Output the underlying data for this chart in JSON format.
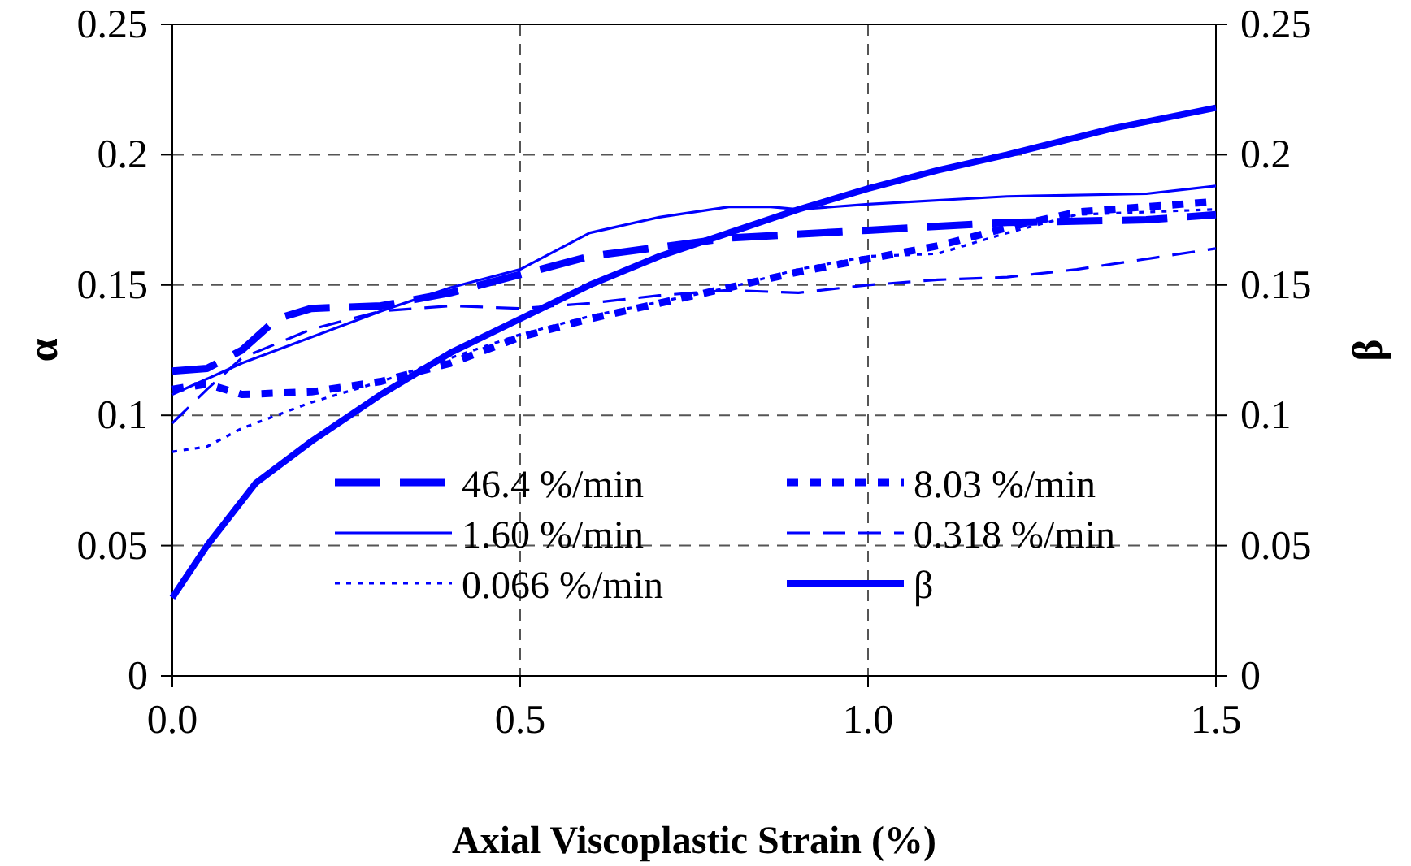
{
  "chart_data": {
    "type": "line",
    "xlabel": "Axial Viscoplastic Strain (%)",
    "ylabel": "α",
    "y2label": "β",
    "xlim": [
      0,
      1.5
    ],
    "xticks": [
      {
        "value": 0,
        "label": "0.0"
      },
      {
        "value": 0.5,
        "label": "0.5"
      },
      {
        "value": 1,
        "label": "1.0"
      },
      {
        "value": 1.5,
        "label": "1.5"
      }
    ],
    "ylim": [
      0,
      0.25
    ],
    "yticks": [
      0,
      0.05,
      0.1,
      0.15,
      0.2,
      0.25
    ],
    "y2lim": [
      0,
      0.25
    ],
    "y2ticks": [
      0,
      0.05,
      0.1,
      0.15,
      0.2,
      0.25
    ],
    "grid": true,
    "legend": "bottom",
    "marker": "none",
    "series": [
      {
        "name": "46.4 %/min",
        "color": "#0000ff",
        "line_style": "dashed",
        "x": [
          0,
          0.05,
          0.1,
          0.15,
          0.2,
          0.3,
          0.4,
          0.5,
          0.6,
          0.8,
          1.0,
          1.2,
          1.4,
          1.5
        ],
        "values": [
          0.117,
          0.118,
          0.125,
          0.137,
          0.141,
          0.142,
          0.147,
          0.154,
          0.161,
          0.168,
          0.171,
          0.174,
          0.175,
          0.177
        ]
      },
      {
        "name": "8.03 %/min",
        "color": "#0000ff",
        "line_style": "dotted",
        "x": [
          0,
          0.05,
          0.1,
          0.2,
          0.3,
          0.4,
          0.5,
          0.6,
          0.7,
          0.8,
          0.9,
          1.0,
          1.1,
          1.2,
          1.3,
          1.5
        ],
        "values": [
          0.11,
          0.112,
          0.108,
          0.109,
          0.113,
          0.12,
          0.13,
          0.137,
          0.143,
          0.149,
          0.155,
          0.16,
          0.165,
          0.172,
          0.178,
          0.182
        ]
      },
      {
        "name": "1.60 %/min",
        "color": "#0000ff",
        "line_style": "solid",
        "x": [
          0,
          0.1,
          0.2,
          0.3,
          0.4,
          0.5,
          0.6,
          0.7,
          0.8,
          0.86,
          0.9,
          1.0,
          1.2,
          1.4,
          1.5
        ],
        "values": [
          0.108,
          0.12,
          0.13,
          0.14,
          0.149,
          0.156,
          0.17,
          0.176,
          0.18,
          0.18,
          0.179,
          0.181,
          0.184,
          0.185,
          0.188
        ]
      },
      {
        "name": "0.318 %/min",
        "color": "#0000ff",
        "line_style": "dashed",
        "x": [
          0,
          0.05,
          0.1,
          0.2,
          0.3,
          0.4,
          0.5,
          0.6,
          0.7,
          0.8,
          0.9,
          1.0,
          1.1,
          1.2,
          1.3,
          1.5
        ],
        "values": [
          0.097,
          0.11,
          0.122,
          0.133,
          0.14,
          0.142,
          0.141,
          0.143,
          0.146,
          0.148,
          0.147,
          0.15,
          0.152,
          0.153,
          0.156,
          0.164
        ]
      },
      {
        "name": "0.066 %/min",
        "color": "#0000ff",
        "line_style": "dotted",
        "x": [
          0,
          0.05,
          0.1,
          0.2,
          0.3,
          0.4,
          0.5,
          0.6,
          0.8,
          0.9,
          1.0,
          1.1,
          1.2,
          1.3,
          1.5
        ],
        "values": [
          0.086,
          0.088,
          0.095,
          0.105,
          0.113,
          0.122,
          0.131,
          0.138,
          0.149,
          0.156,
          0.161,
          0.162,
          0.17,
          0.177,
          0.179
        ]
      },
      {
        "name": "β",
        "color": "#0000ff",
        "line_style": "solid",
        "axis": "y2",
        "x": [
          0,
          0.05,
          0.12,
          0.2,
          0.3,
          0.4,
          0.5,
          0.6,
          0.7,
          0.8,
          0.9,
          1.0,
          1.1,
          1.2,
          1.35,
          1.5
        ],
        "values": [
          0.03,
          0.05,
          0.074,
          0.09,
          0.108,
          0.124,
          0.137,
          0.15,
          0.161,
          0.17,
          0.179,
          0.187,
          0.194,
          0.2,
          0.21,
          0.218
        ]
      }
    ]
  }
}
